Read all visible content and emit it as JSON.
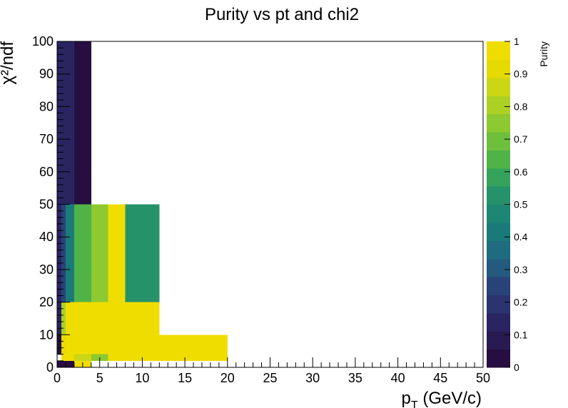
{
  "chart_data": {
    "type": "heatmap",
    "title": "Purity vs pt and chi2",
    "xlabel": "p_{T} (GeV/c)",
    "ylabel": "χ²/ndf",
    "zlabel": "Purity",
    "xlim": [
      0,
      50
    ],
    "ylim": [
      0,
      100
    ],
    "zlim": [
      0,
      1
    ],
    "x_ticks": [
      0,
      5,
      10,
      15,
      20,
      25,
      30,
      35,
      40,
      45,
      50
    ],
    "x_tick_labels": [
      "0",
      "5",
      "10",
      "15",
      "20",
      "25",
      "30",
      "35",
      "40",
      "45",
      "50"
    ],
    "y_ticks": [
      0,
      10,
      20,
      30,
      40,
      50,
      60,
      70,
      80,
      90,
      100
    ],
    "y_tick_labels": [
      "0",
      "10",
      "20",
      "30",
      "40",
      "50",
      "60",
      "70",
      "80",
      "90",
      "100"
    ],
    "z_ticks": [
      0,
      0.1,
      0.2,
      0.3,
      0.4,
      0.5,
      0.6,
      0.7,
      0.8,
      0.9,
      1
    ],
    "z_tick_labels": [
      "0",
      "0.1",
      "0.2",
      "0.3",
      "0.4",
      "0.5",
      "0.6",
      "0.7",
      "0.8",
      "0.9",
      "1"
    ],
    "colormap": [
      "#260e40",
      "#291a52",
      "#2a2561",
      "#2b346e",
      "#294378",
      "#245a7e",
      "#1f6b7f",
      "#1a7a7a",
      "#1d8773",
      "#26926a",
      "#35a35b",
      "#50b348",
      "#6ebf3c",
      "#8dc930",
      "#acd024",
      "#cbd614",
      "#e6da00",
      "#f0dd00"
    ],
    "grid": false,
    "cells": [
      {
        "x": [
          0,
          0.5
        ],
        "y": [
          0,
          2
        ],
        "z": 0.0
      },
      {
        "x": [
          0.5,
          1
        ],
        "y": [
          0,
          2
        ],
        "z": 0.0
      },
      {
        "x": [
          1,
          2
        ],
        "y": [
          0,
          2
        ],
        "z": 0.0
      },
      {
        "x": [
          2,
          4
        ],
        "y": [
          0,
          2
        ],
        "z": 1.0
      },
      {
        "x": [
          0.5,
          1
        ],
        "y": [
          2,
          4
        ],
        "z": 0.95
      },
      {
        "x": [
          1,
          2
        ],
        "y": [
          2,
          4
        ],
        "z": 1.0
      },
      {
        "x": [
          2,
          4
        ],
        "y": [
          2,
          4
        ],
        "z": 0.85
      },
      {
        "x": [
          4,
          6
        ],
        "y": [
          2,
          4
        ],
        "z": 0.75
      },
      {
        "x": [
          6,
          8
        ],
        "y": [
          2,
          4
        ],
        "z": 1.0
      },
      {
        "x": [
          8,
          12
        ],
        "y": [
          2,
          4
        ],
        "z": 1.0
      },
      {
        "x": [
          12,
          20
        ],
        "y": [
          2,
          4
        ],
        "z": 1.0
      },
      {
        "x": [
          0.5,
          1
        ],
        "y": [
          4,
          10
        ],
        "z": 0.9
      },
      {
        "x": [
          1,
          2
        ],
        "y": [
          4,
          10
        ],
        "z": 1.0
      },
      {
        "x": [
          2,
          4
        ],
        "y": [
          4,
          10
        ],
        "z": 1.0
      },
      {
        "x": [
          4,
          6
        ],
        "y": [
          4,
          10
        ],
        "z": 1.0
      },
      {
        "x": [
          6,
          8
        ],
        "y": [
          4,
          10
        ],
        "z": 1.0
      },
      {
        "x": [
          8,
          12
        ],
        "y": [
          4,
          10
        ],
        "z": 1.0
      },
      {
        "x": [
          12,
          20
        ],
        "y": [
          4,
          10
        ],
        "z": 1.0
      },
      {
        "x": [
          0,
          0.5
        ],
        "y": [
          4,
          10
        ],
        "z": 0.05
      },
      {
        "x": [
          0.5,
          1
        ],
        "y": [
          10,
          20
        ],
        "z": 0.8
      },
      {
        "x": [
          1,
          2
        ],
        "y": [
          10,
          20
        ],
        "z": 1.0
      },
      {
        "x": [
          2,
          4
        ],
        "y": [
          10,
          20
        ],
        "z": 1.0
      },
      {
        "x": [
          4,
          6
        ],
        "y": [
          10,
          20
        ],
        "z": 1.0
      },
      {
        "x": [
          6,
          8
        ],
        "y": [
          10,
          20
        ],
        "z": 1.0
      },
      {
        "x": [
          8,
          12
        ],
        "y": [
          10,
          20
        ],
        "z": 1.0
      },
      {
        "x": [
          0,
          0.5
        ],
        "y": [
          10,
          20
        ],
        "z": 0.15
      },
      {
        "x": [
          0,
          0.5
        ],
        "y": [
          20,
          50
        ],
        "z": 0.15
      },
      {
        "x": [
          0.5,
          1
        ],
        "y": [
          20,
          50
        ],
        "z": 0.25
      },
      {
        "x": [
          1,
          2
        ],
        "y": [
          20,
          50
        ],
        "z": 0.4
      },
      {
        "x": [
          2,
          4
        ],
        "y": [
          20,
          50
        ],
        "z": 0.65
      },
      {
        "x": [
          4,
          6
        ],
        "y": [
          20,
          50
        ],
        "z": 0.75
      },
      {
        "x": [
          6,
          8
        ],
        "y": [
          20,
          50
        ],
        "z": 1.0
      },
      {
        "x": [
          8,
          12
        ],
        "y": [
          20,
          50
        ],
        "z": 0.55
      },
      {
        "x": [
          0,
          0.5
        ],
        "y": [
          50,
          100
        ],
        "z": 0.15
      },
      {
        "x": [
          0.5,
          1
        ],
        "y": [
          50,
          100
        ],
        "z": 0.15
      },
      {
        "x": [
          1,
          2
        ],
        "y": [
          50,
          100
        ],
        "z": 0.15
      },
      {
        "x": [
          2,
          4
        ],
        "y": [
          50,
          100
        ],
        "z": 0.05
      }
    ]
  }
}
